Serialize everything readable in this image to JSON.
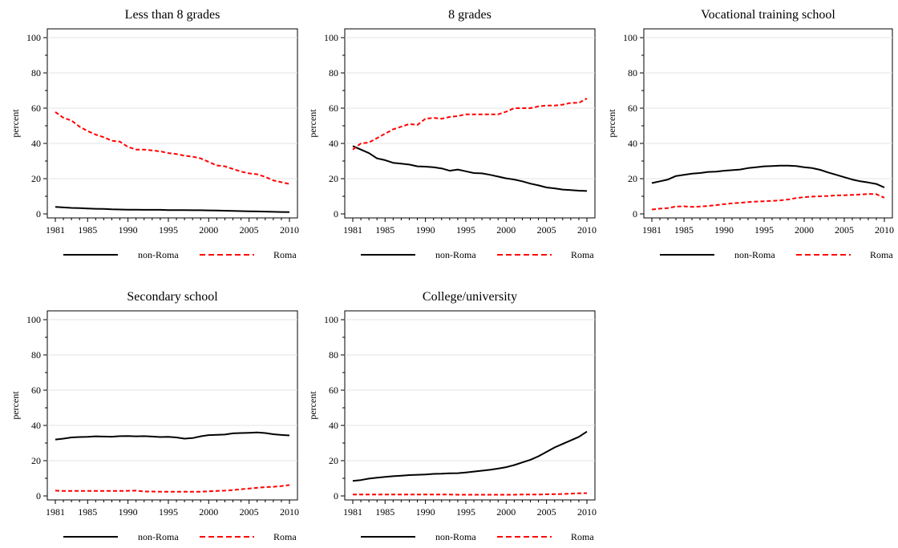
{
  "legend": {
    "labels": [
      "non-Roma",
      "Roma"
    ]
  },
  "colors": {
    "non-Roma": "#000000",
    "Roma": "#ff0000"
  },
  "chart_data": [
    {
      "type": "line",
      "title": "Less than 8 grades",
      "ylabel": "percent",
      "xlabel": "",
      "ylim": [
        0,
        100
      ],
      "yticks": [
        0,
        20,
        40,
        60,
        80,
        100
      ],
      "xticks": [
        1981,
        1985,
        1990,
        1995,
        2000,
        2005,
        2010
      ],
      "x": [
        1981,
        1982,
        1983,
        1984,
        1985,
        1986,
        1987,
        1988,
        1989,
        1990,
        1991,
        1992,
        1993,
        1994,
        1995,
        1996,
        1997,
        1998,
        1999,
        2000,
        2001,
        2002,
        2003,
        2004,
        2005,
        2006,
        2007,
        2008,
        2009,
        2010
      ],
      "series": [
        {
          "name": "non-Roma",
          "values": [
            4.0,
            3.7,
            3.4,
            3.3,
            3.1,
            2.9,
            2.8,
            2.6,
            2.5,
            2.4,
            2.4,
            2.3,
            2.3,
            2.3,
            2.2,
            2.2,
            2.2,
            2.1,
            2.1,
            2.0,
            1.9,
            1.8,
            1.7,
            1.6,
            1.5,
            1.4,
            1.3,
            1.2,
            1.1,
            1.0
          ]
        },
        {
          "name": "Roma",
          "values": [
            57.8,
            54.5,
            53.0,
            49.5,
            47.0,
            45.0,
            43.5,
            41.5,
            41.0,
            38.0,
            36.5,
            36.5,
            36.0,
            35.5,
            34.5,
            34.0,
            33.0,
            32.5,
            31.5,
            29.5,
            27.5,
            27.0,
            25.5,
            24.0,
            23.0,
            22.5,
            21.0,
            19.0,
            18.0,
            17.0
          ]
        }
      ]
    },
    {
      "type": "line",
      "title": "8 grades",
      "ylabel": "percent",
      "xlabel": "",
      "ylim": [
        0,
        100
      ],
      "yticks": [
        0,
        20,
        40,
        60,
        80,
        100
      ],
      "xticks": [
        1981,
        1985,
        1990,
        1995,
        2000,
        2005,
        2010
      ],
      "x": [
        1981,
        1982,
        1983,
        1984,
        1985,
        1986,
        1987,
        1988,
        1989,
        1990,
        1991,
        1992,
        1993,
        1994,
        1995,
        1996,
        1997,
        1998,
        1999,
        2000,
        2001,
        2002,
        2003,
        2004,
        2005,
        2006,
        2007,
        2008,
        2009,
        2010
      ],
      "series": [
        {
          "name": "non-Roma",
          "values": [
            38.5,
            36.5,
            34.5,
            31.5,
            30.5,
            29.0,
            28.5,
            28.0,
            27.0,
            26.8,
            26.5,
            25.8,
            24.5,
            25.2,
            24.2,
            23.2,
            23.0,
            22.2,
            21.2,
            20.2,
            19.5,
            18.5,
            17.2,
            16.2,
            15.0,
            14.5,
            13.8,
            13.5,
            13.2,
            13.0
          ]
        },
        {
          "name": "Roma",
          "values": [
            36.5,
            40.0,
            40.5,
            43.0,
            45.5,
            48.0,
            49.5,
            51.0,
            50.5,
            54.0,
            54.5,
            54.0,
            55.0,
            55.5,
            56.5,
            56.5,
            56.5,
            56.5,
            56.5,
            58.0,
            60.0,
            60.0,
            60.0,
            61.0,
            61.5,
            61.5,
            62.0,
            63.0,
            63.0,
            65.5
          ]
        }
      ]
    },
    {
      "type": "line",
      "title": "Vocational training school",
      "ylabel": "percent",
      "xlabel": "",
      "ylim": [
        0,
        100
      ],
      "yticks": [
        0,
        20,
        40,
        60,
        80,
        100
      ],
      "xticks": [
        1981,
        1985,
        1990,
        1995,
        2000,
        2005,
        2010
      ],
      "x": [
        1981,
        1982,
        1983,
        1984,
        1985,
        1986,
        1987,
        1988,
        1989,
        1990,
        1991,
        1992,
        1993,
        1994,
        1995,
        1996,
        1997,
        1998,
        1999,
        2000,
        2001,
        2002,
        2003,
        2004,
        2005,
        2006,
        2007,
        2008,
        2009,
        2010
      ],
      "series": [
        {
          "name": "non-Roma",
          "values": [
            17.5,
            18.5,
            19.5,
            21.5,
            22.2,
            22.8,
            23.2,
            23.8,
            24.0,
            24.5,
            24.8,
            25.2,
            26.0,
            26.5,
            27.0,
            27.2,
            27.4,
            27.4,
            27.2,
            26.5,
            26.0,
            25.0,
            23.5,
            22.2,
            20.8,
            19.5,
            18.5,
            17.8,
            17.0,
            15.0
          ]
        },
        {
          "name": "Roma",
          "values": [
            2.5,
            3.0,
            3.3,
            4.2,
            4.3,
            4.0,
            4.2,
            4.5,
            5.0,
            5.5,
            6.0,
            6.3,
            6.7,
            7.0,
            7.2,
            7.4,
            7.7,
            8.2,
            9.0,
            9.5,
            9.8,
            10.0,
            10.2,
            10.5,
            10.6,
            10.8,
            11.0,
            11.3,
            11.2,
            9.2
          ]
        }
      ]
    },
    {
      "type": "line",
      "title": "Secondary school",
      "ylabel": "percent",
      "xlabel": "",
      "ylim": [
        0,
        100
      ],
      "yticks": [
        0,
        20,
        40,
        60,
        80,
        100
      ],
      "xticks": [
        1981,
        1985,
        1990,
        1995,
        2000,
        2005,
        2010
      ],
      "x": [
        1981,
        1982,
        1983,
        1984,
        1985,
        1986,
        1987,
        1988,
        1989,
        1990,
        1991,
        1992,
        1993,
        1994,
        1995,
        1996,
        1997,
        1998,
        1999,
        2000,
        2001,
        2002,
        2003,
        2004,
        2005,
        2006,
        2007,
        2008,
        2009,
        2010
      ],
      "series": [
        {
          "name": "non-Roma",
          "values": [
            32.0,
            32.5,
            33.2,
            33.4,
            33.5,
            33.8,
            33.7,
            33.6,
            33.9,
            34.0,
            33.8,
            33.9,
            33.7,
            33.4,
            33.5,
            33.2,
            32.5,
            32.8,
            33.8,
            34.5,
            34.7,
            34.8,
            35.5,
            35.7,
            35.8,
            36.0,
            35.7,
            35.0,
            34.6,
            34.3
          ]
        },
        {
          "name": "Roma",
          "values": [
            3.0,
            2.8,
            2.8,
            2.8,
            2.8,
            2.8,
            2.8,
            2.8,
            2.8,
            2.9,
            3.0,
            2.5,
            2.5,
            2.4,
            2.4,
            2.4,
            2.4,
            2.4,
            2.4,
            2.6,
            2.8,
            3.0,
            3.3,
            3.8,
            4.2,
            4.6,
            5.0,
            5.2,
            5.6,
            6.2
          ]
        }
      ]
    },
    {
      "type": "line",
      "title": "College/university",
      "ylabel": "percent",
      "xlabel": "",
      "ylim": [
        0,
        100
      ],
      "yticks": [
        0,
        20,
        40,
        60,
        80,
        100
      ],
      "xticks": [
        1981,
        1985,
        1990,
        1995,
        2000,
        2005,
        2010
      ],
      "x": [
        1981,
        1982,
        1983,
        1984,
        1985,
        1986,
        1987,
        1988,
        1989,
        1990,
        1991,
        1992,
        1993,
        1994,
        1995,
        1996,
        1997,
        1998,
        1999,
        2000,
        2001,
        2002,
        2003,
        2004,
        2005,
        2006,
        2007,
        2008,
        2009,
        2010
      ],
      "series": [
        {
          "name": "non-Roma",
          "values": [
            8.5,
            9.0,
            9.8,
            10.3,
            10.8,
            11.2,
            11.5,
            11.8,
            12.0,
            12.2,
            12.5,
            12.6,
            12.8,
            12.9,
            13.3,
            13.8,
            14.3,
            14.8,
            15.5,
            16.3,
            17.5,
            19.0,
            20.5,
            22.5,
            25.0,
            27.5,
            29.5,
            31.5,
            33.5,
            36.5
          ]
        },
        {
          "name": "Roma",
          "values": [
            0.8,
            0.8,
            0.8,
            0.8,
            0.8,
            0.8,
            0.8,
            0.8,
            0.8,
            0.8,
            0.8,
            0.8,
            0.8,
            0.7,
            0.7,
            0.7,
            0.7,
            0.7,
            0.7,
            0.7,
            0.7,
            0.8,
            0.8,
            0.8,
            0.9,
            1.0,
            1.1,
            1.3,
            1.5,
            1.6
          ]
        }
      ]
    }
  ]
}
